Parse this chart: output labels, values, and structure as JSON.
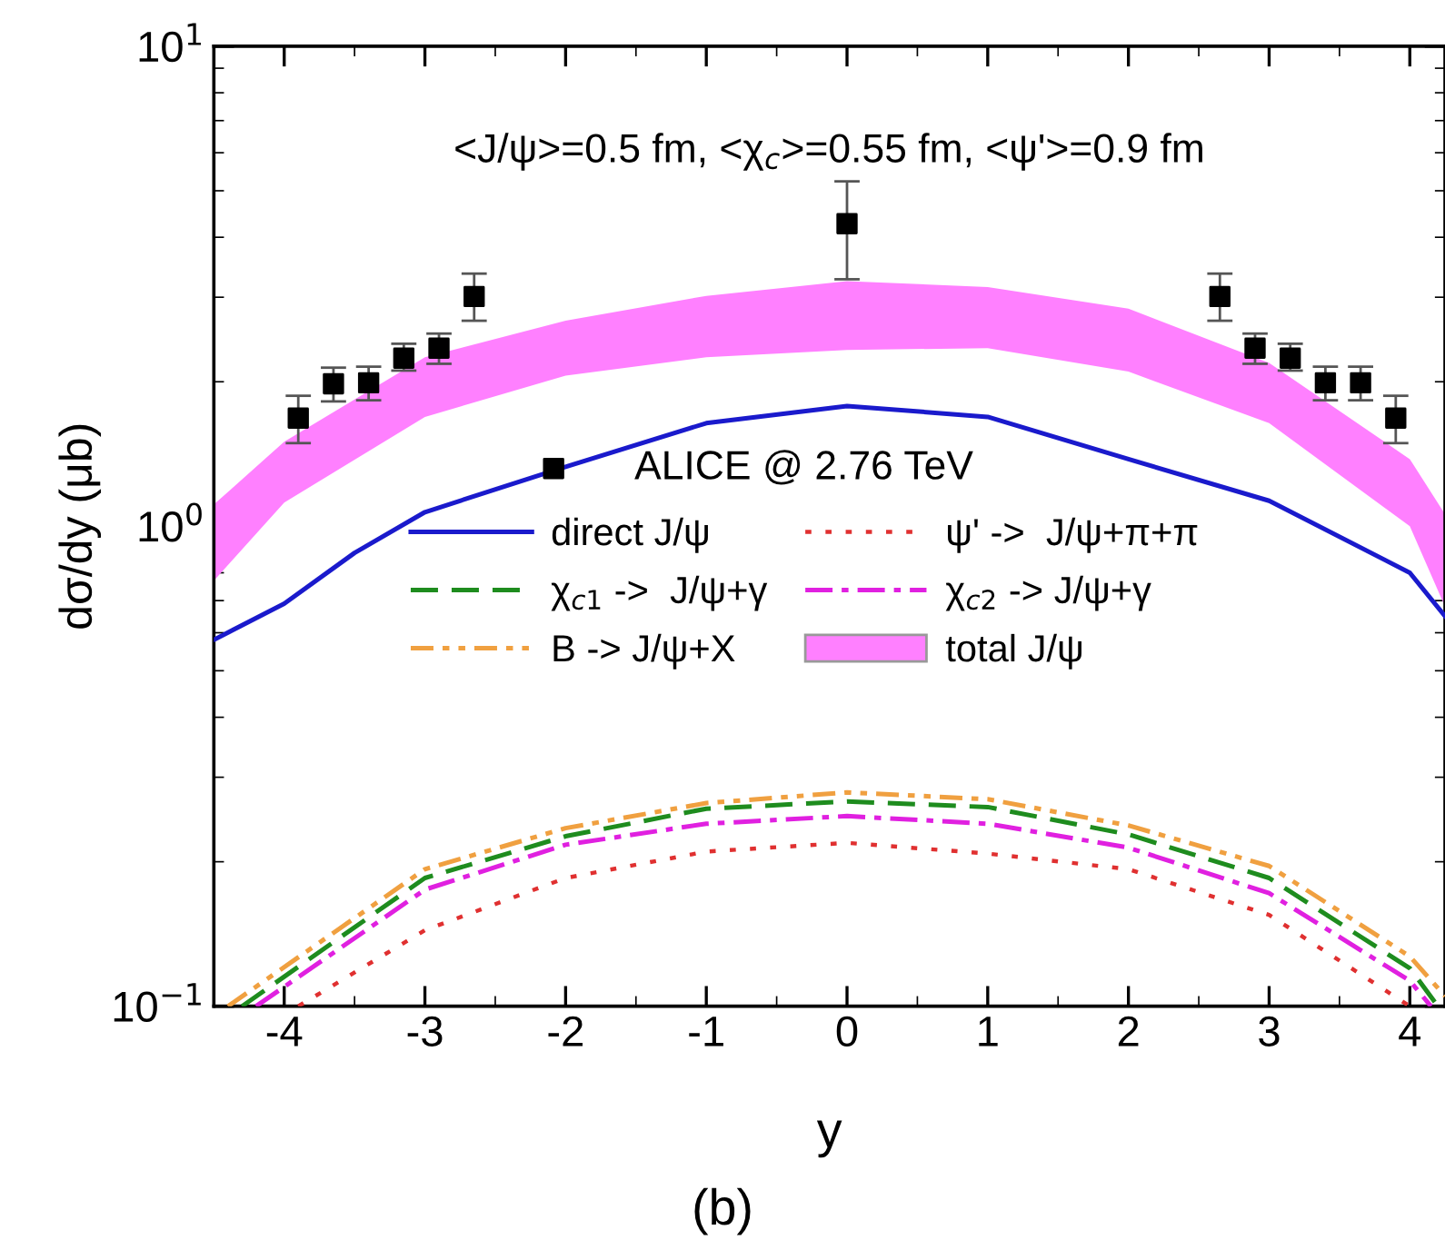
{
  "chart_data": {
    "type": "line",
    "xlabel": "y",
    "ylabel": "dσ/dy (μb)",
    "annotations": [
      "<J/ψ>=0.5 fm, <χ$_{c}$>=0.55 fm, <ψ'>=0.9 fm",
      "(b)"
    ],
    "log": "y",
    "legend": "center",
    "grid": false,
    "xlim": [
      -4.5,
      4.25
    ],
    "xticks": [
      -4,
      -3,
      -2,
      -1,
      0,
      1,
      2,
      3,
      4
    ],
    "ylim": [
      0.1,
      10
    ],
    "yticks": [
      {
        "value": 0.1,
        "label": "10$^{−1}$"
      },
      {
        "value": 1,
        "label": "10$^{0}$"
      },
      {
        "value": 10,
        "label": "10$^{1}$"
      }
    ],
    "series": [
      {
        "name": "ALICE @ 2.76 TeV",
        "type": "scatter",
        "marker": "square",
        "color": "#000000",
        "x": [
          -3.9,
          -3.65,
          -3.4,
          -3.15,
          -2.9,
          -2.65,
          0,
          2.65,
          2.9,
          3.15,
          3.4,
          3.65,
          3.9
        ],
        "values": [
          1.68,
          1.98,
          1.99,
          2.24,
          2.35,
          3.01,
          4.27,
          3.01,
          2.35,
          2.24,
          1.99,
          1.99,
          1.68
        ],
        "errors": [
          [
            1.49,
            1.87
          ],
          [
            1.82,
            2.14
          ],
          [
            1.83,
            2.15
          ],
          [
            2.11,
            2.4
          ],
          [
            2.18,
            2.52
          ],
          [
            2.68,
            3.36
          ],
          [
            3.27,
            5.23
          ],
          [
            2.68,
            3.36
          ],
          [
            2.18,
            2.52
          ],
          [
            2.11,
            2.4
          ],
          [
            1.83,
            2.15
          ],
          [
            1.83,
            2.15
          ],
          [
            1.49,
            1.87
          ]
        ]
      },
      {
        "name": "direct J/ψ",
        "line_style": "solid",
        "color": "#1a1acc",
        "x": [
          -4.5,
          -4,
          -3.5,
          -3,
          -2,
          -1,
          0,
          1,
          2,
          3,
          4,
          4.25
        ],
        "values": [
          0.58,
          0.69,
          0.88,
          1.07,
          1.33,
          1.64,
          1.78,
          1.69,
          1.38,
          1.13,
          0.8,
          0.65
        ]
      },
      {
        "name": "χ$_{c1}$ ->  J/ψ+γ",
        "line_style": "dashed",
        "color": "#1e8c1e",
        "x": [
          -4.3,
          -3,
          -2,
          -1,
          0,
          1,
          2,
          3,
          4,
          4.2
        ],
        "values": [
          0.1,
          0.185,
          0.226,
          0.258,
          0.267,
          0.26,
          0.228,
          0.185,
          0.12,
          0.1
        ]
      },
      {
        "name": "B -> J/ψ+X",
        "line_style": "dashdotdot",
        "color": "#f0a040",
        "x": [
          -4.4,
          -3,
          -2,
          -1,
          0,
          1,
          2,
          3,
          4,
          4.25
        ],
        "values": [
          0.1,
          0.193,
          0.235,
          0.265,
          0.279,
          0.27,
          0.238,
          0.196,
          0.127,
          0.105
        ]
      },
      {
        "name": "ψ' ->  J/ψ+π+π",
        "line_style": "dotted",
        "color": "#e03030",
        "x": [
          -3.9,
          -3,
          -2,
          -1,
          0,
          1,
          2,
          3,
          4
        ],
        "values": [
          0.1,
          0.144,
          0.185,
          0.21,
          0.219,
          0.208,
          0.193,
          0.155,
          0.1
        ]
      },
      {
        "name": "χ$_{c2}$ -> J/ψ+γ",
        "line_style": "dashdot",
        "color": "#e020e0",
        "x": [
          -4.2,
          -3,
          -2,
          -1,
          0,
          1,
          2,
          3,
          4,
          4.15
        ],
        "values": [
          0.1,
          0.175,
          0.217,
          0.24,
          0.249,
          0.24,
          0.214,
          0.172,
          0.113,
          0.1
        ]
      },
      {
        "name": "total J/ψ",
        "type": "area",
        "color": "#ff80ff",
        "x": [
          -4.5,
          -4,
          -3,
          -2,
          -1,
          0,
          1,
          2,
          3,
          4,
          4.25
        ],
        "values": [
          null,
          null,
          null,
          null,
          null,
          null,
          null,
          null,
          null,
          null,
          null
        ],
        "upper": [
          1.11,
          1.5,
          2.25,
          2.68,
          3.02,
          3.24,
          3.15,
          2.84,
          2.19,
          1.38,
          1.06
        ],
        "lower": [
          0.77,
          1.12,
          1.69,
          2.06,
          2.25,
          2.33,
          2.35,
          2.1,
          1.64,
          1.0,
          0.68
        ]
      }
    ]
  }
}
